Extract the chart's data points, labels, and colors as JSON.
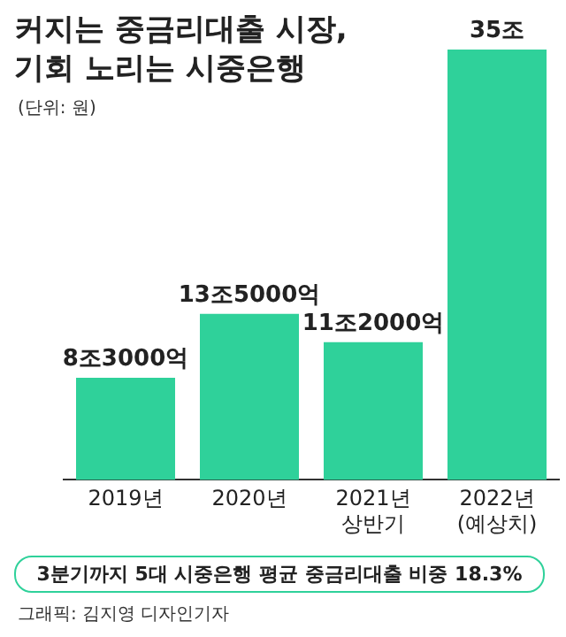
{
  "chart_data": {
    "type": "bar",
    "title": "커지는 중금리대출 시장,\n기회 노리는 시중은행",
    "subtitle": "(단위: 원)",
    "categories": [
      "2019년",
      "2020년",
      "2021년\n상반기",
      "2022년\n(예상치)"
    ],
    "values": [
      8.3,
      13.5,
      11.2,
      35
    ],
    "value_labels": [
      "8조3000억",
      "13조5000억",
      "11조2000억",
      "35조"
    ],
    "color": "#2fd19a",
    "grid": false,
    "legend": false,
    "annotations": [
      "3분기까지 5대 시중은행 평균 중금리대출 비중 18.3%",
      "그래픽: 김지영 디자인기자"
    ]
  }
}
